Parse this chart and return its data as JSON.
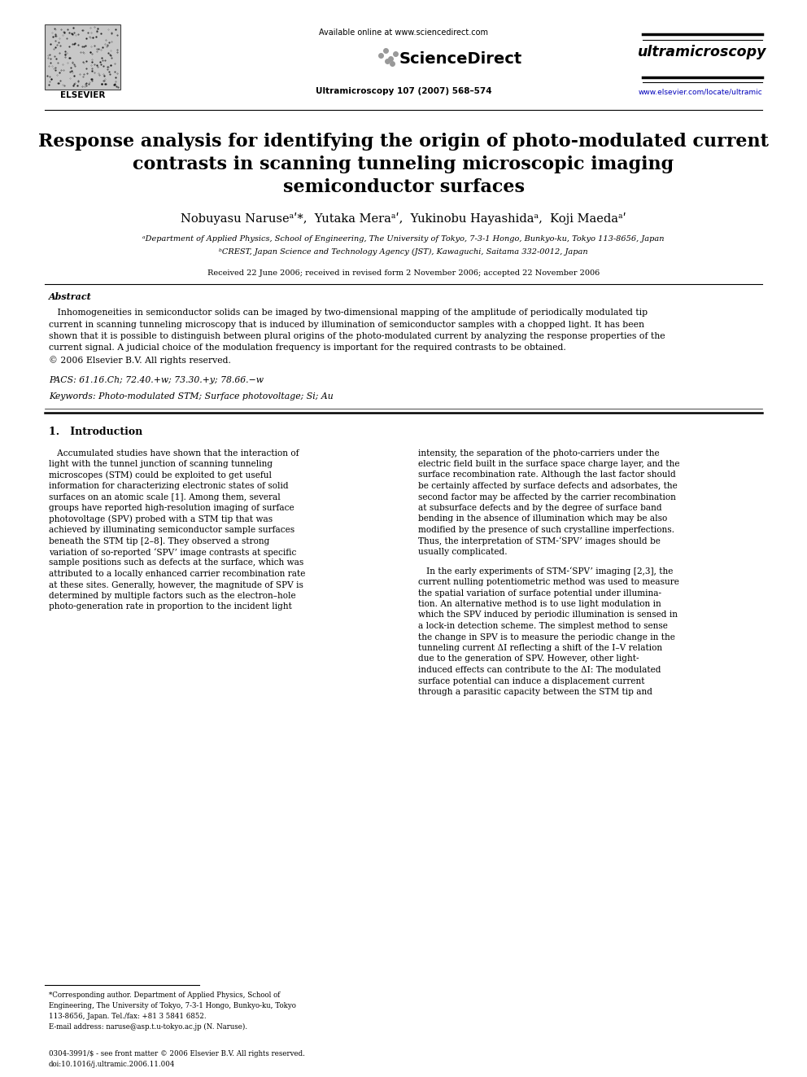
{
  "header_available_online": "Available online at www.sciencedirect.com",
  "header_journal": "Ultramicroscopy 107 (2007) 568–574",
  "journal_name": "ultramicroscopy",
  "journal_url": "www.elsevier.com/locate/ultramic",
  "elsevier_label": "ELSEVIER",
  "title_line1": "Response analysis for identifying the origin of photo-modulated current",
  "title_line2": "contrasts in scanning tunneling microscopic imaging",
  "title_line3": "semiconductor surfaces",
  "authors": "Nobuyasu Naruseᵃʹ*,  Yutaka Meraᵃʹ,  Yukinobu Hayashidaᵃ,  Koji Maedaᵃʹ",
  "affil_a": "ᵃDepartment of Applied Physics, School of Engineering, The University of Tokyo, 7-3-1 Hongo, Bunkyo-ku, Tokyo 113-8656, Japan",
  "affil_b": "ᵇCREST, Japan Science and Technology Agency (JST), Kawaguchi, Saitama 332-0012, Japan",
  "received": "Received 22 June 2006; received in revised form 2 November 2006; accepted 22 November 2006",
  "abstract_title": "Abstract",
  "pacs": "PACS: 61.16.Ch; 72.40.+w; 73.30.+y; 78.66.−w",
  "keywords": "Keywords: Photo-modulated STM; Surface photovoltage; Si; Au",
  "section1_title": "1.   Introduction",
  "footnote_star_line1": "*Corresponding author. Department of Applied Physics, School of",
  "footnote_star_line2": "Engineering, The University of Tokyo, 7-3-1 Hongo, Bunkyo-ku, Tokyo",
  "footnote_star_line3": "113-8656, Japan. Tel./fax: +81 3 5841 6852.",
  "footnote_email": "E-mail address: naruse@asp.t.u-tokyo.ac.jp (N. Naruse).",
  "footnote_bottom1": "0304-3991/$ - see front matter © 2006 Elsevier B.V. All rights reserved.",
  "footnote_bottom2": "doi:10.1016/j.ultramic.2006.11.004",
  "bg_color": "#ffffff",
  "text_color": "#000000",
  "url_color": "#0000bb",
  "abs_lines": [
    "   Inhomogeneities in semiconductor solids can be imaged by two-dimensional mapping of the amplitude of periodically modulated tip",
    "current in scanning tunneling microscopy that is induced by illumination of semiconductor samples with a chopped light. It has been",
    "shown that it is possible to distinguish between plural origins of the photo-modulated current by analyzing the response properties of the",
    "current signal. A judicial choice of the modulation frequency is important for the required contrasts to be obtained.",
    "© 2006 Elsevier B.V. All rights reserved."
  ],
  "col1_lines": [
    "   Accumulated studies have shown that the interaction of",
    "light with the tunnel junction of scanning tunneling",
    "microscopes (STM) could be exploited to get useful",
    "information for characterizing electronic states of solid",
    "surfaces on an atomic scale [1]. Among them, several",
    "groups have reported high-resolution imaging of surface",
    "photovoltage (SPV) probed with a STM tip that was",
    "achieved by illuminating semiconductor sample surfaces",
    "beneath the STM tip [2–8]. They observed a strong",
    "variation of so-reported ‘SPV’ image contrasts at specific",
    "sample positions such as defects at the surface, which was",
    "attributed to a locally enhanced carrier recombination rate",
    "at these sites. Generally, however, the magnitude of SPV is",
    "determined by multiple factors such as the electron–hole",
    "photo-generation rate in proportion to the incident light"
  ],
  "col2_lines_1": [
    "intensity, the separation of the photo-carriers under the",
    "electric field built in the surface space charge layer, and the",
    "surface recombination rate. Although the last factor should",
    "be certainly affected by surface defects and adsorbates, the",
    "second factor may be affected by the carrier recombination",
    "at subsurface defects and by the degree of surface band",
    "bending in the absence of illumination which may be also",
    "modified by the presence of such crystalline imperfections.",
    "Thus, the interpretation of STM-‘SPV’ images should be",
    "usually complicated."
  ],
  "col2_lines_2": [
    "   In the early experiments of STM-‘SPV’ imaging [2,3], the",
    "current nulling potentiometric method was used to measure",
    "the spatial variation of surface potential under illumina-",
    "tion. An alternative method is to use light modulation in",
    "which the SPV induced by periodic illumination is sensed in",
    "a lock-in detection scheme. The simplest method to sense",
    "the change in SPV is to measure the periodic change in the",
    "tunneling current ΔI reflecting a shift of the I–V relation",
    "due to the generation of SPV. However, other light-",
    "induced effects can contribute to the ΔI: The modulated",
    "surface potential can induce a displacement current",
    "through a parasitic capacity between the STM tip and"
  ]
}
